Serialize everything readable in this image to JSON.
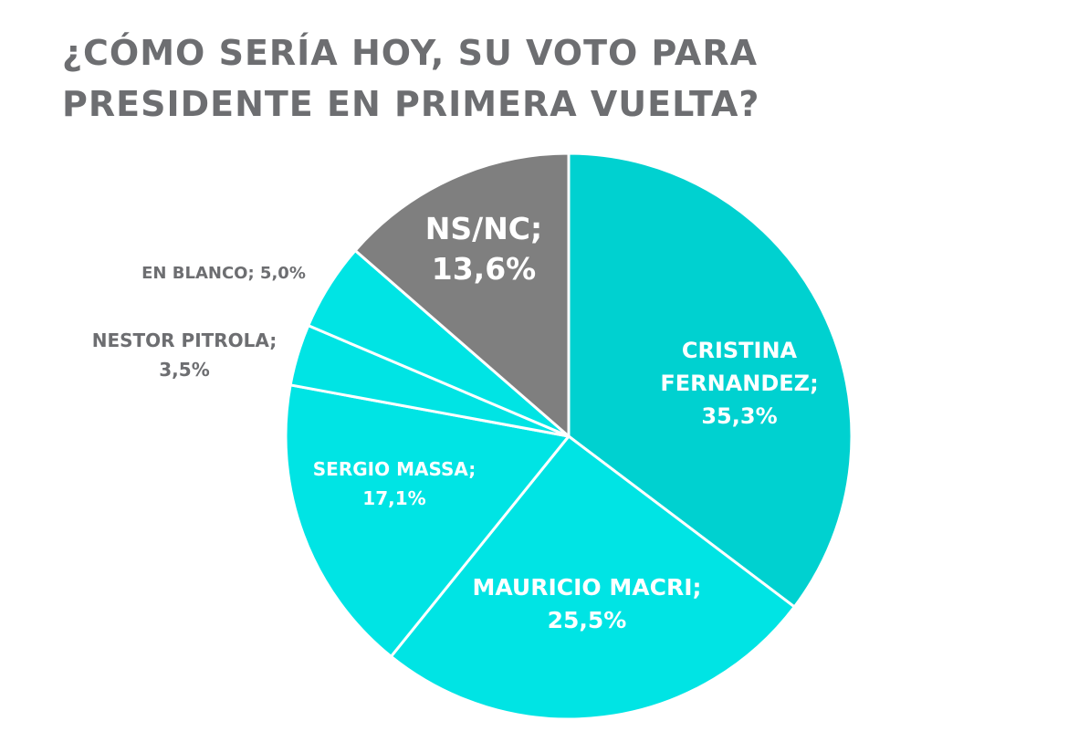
{
  "chart_data": {
    "type": "pie",
    "title_lines": [
      "¿CÓMO SERÍA HOY, SU VOTO PARA",
      "PRESIDENTE EN PRIMERA VUELTA?"
    ],
    "slices": [
      {
        "name": "CRISTINA FERNANDEZ",
        "value": 35.3,
        "color": "#00d1d0",
        "label_lines": [
          "CRISTINA",
          "FERNANDEZ;",
          "35,3%"
        ]
      },
      {
        "name": "MAURICIO MACRI",
        "value": 25.5,
        "color": "#00e4e4",
        "label_lines": [
          "MAURICIO MACRI;",
          "25,5%"
        ]
      },
      {
        "name": "SERGIO MASSA",
        "value": 17.1,
        "color": "#00e4e4",
        "label_lines": [
          "SERGIO MASSA;",
          "17,1%"
        ]
      },
      {
        "name": "NESTOR PITROLA",
        "value": 3.5,
        "color": "#00e4e4",
        "label_lines": [
          "NESTOR PITROLA;",
          "3,5%"
        ]
      },
      {
        "name": "EN BLANCO",
        "value": 5.0,
        "color": "#00e4e4",
        "label_lines": [
          "EN BLANCO; 5,0%"
        ]
      },
      {
        "name": "NS/NC",
        "value": 13.6,
        "color": "#7f7f7f",
        "label_lines": [
          "NS/NC;",
          "13,6%"
        ]
      }
    ],
    "label_color_inside": "#ffffff",
    "label_color_outside": "#6d6e71"
  }
}
